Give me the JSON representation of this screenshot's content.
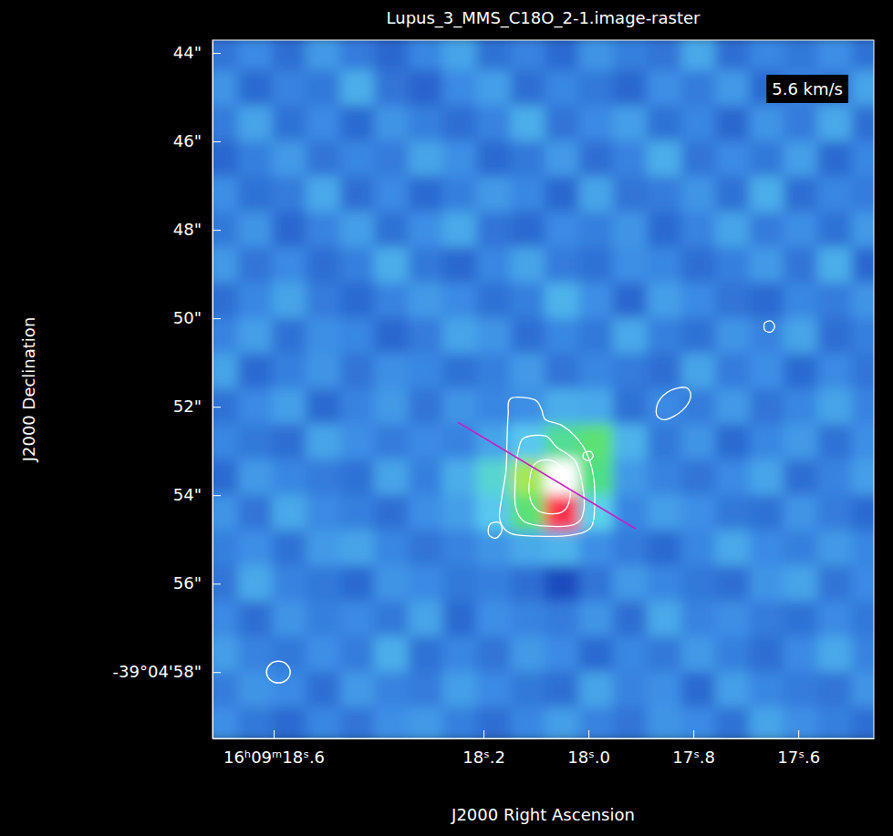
{
  "chart_data": {
    "type": "heatmap",
    "title": "Lupus_3_MMS_C18O_2-1.image-raster",
    "x_label": "J2000 Right Ascension",
    "y_label": "J2000 Declination",
    "annotation": "5.6 km/s",
    "xlim": [
      18.7165,
      17.456
    ],
    "ylim": [
      43.71,
      59.5
    ],
    "xticks": [
      {
        "value": 18.6,
        "label": "16ʰ09ᵐ18ˢ.6"
      },
      {
        "value": 18.2,
        "label": "18ˢ.2"
      },
      {
        "value": 18.0,
        "label": "18ˢ.0"
      },
      {
        "value": 17.8,
        "label": "17ˢ.8"
      },
      {
        "value": 17.6,
        "label": "17ˢ.6"
      }
    ],
    "yticks": [
      {
        "value": 44,
        "label": "44\""
      },
      {
        "value": 46,
        "label": "46\""
      },
      {
        "value": 48,
        "label": "48\""
      },
      {
        "value": 50,
        "label": "50\""
      },
      {
        "value": 52,
        "label": "52\""
      },
      {
        "value": 54,
        "label": "54\""
      },
      {
        "value": 56,
        "label": "56\""
      },
      {
        "value": 58,
        "label": "-39°04'58\""
      }
    ],
    "x": [
      18.7,
      18.635,
      18.57,
      18.505,
      18.44,
      18.375,
      18.31,
      18.245,
      18.18,
      18.115,
      18.05,
      17.985,
      17.92,
      17.855,
      17.79,
      17.725,
      17.66,
      17.595,
      17.53,
      17.465
    ],
    "y": [
      44.0,
      44.8,
      45.6,
      46.4,
      47.2,
      48.0,
      48.8,
      49.6,
      50.4,
      51.2,
      52.0,
      52.8,
      53.6,
      54.4,
      55.2,
      56.0,
      56.8,
      57.6,
      58.4,
      59.2
    ],
    "cells": [
      [
        0.22,
        0.28,
        0.2,
        0.31,
        0.24,
        0.18,
        0.27,
        0.33,
        0.21,
        0.26,
        0.19,
        0.3,
        0.25,
        0.22,
        0.34,
        0.2,
        0.27,
        0.23,
        0.29,
        0.21
      ],
      [
        0.3,
        0.19,
        0.26,
        0.23,
        0.35,
        0.22,
        0.17,
        0.28,
        0.32,
        0.2,
        0.27,
        0.23,
        0.18,
        0.29,
        0.24,
        0.31,
        0.19,
        0.26,
        0.22,
        0.33
      ],
      [
        0.24,
        0.33,
        0.21,
        0.28,
        0.19,
        0.3,
        0.25,
        0.2,
        0.26,
        0.35,
        0.22,
        0.28,
        0.32,
        0.21,
        0.27,
        0.18,
        0.3,
        0.24,
        0.34,
        0.2
      ],
      [
        0.18,
        0.25,
        0.31,
        0.22,
        0.27,
        0.24,
        0.33,
        0.29,
        0.19,
        0.23,
        0.31,
        0.2,
        0.26,
        0.35,
        0.22,
        0.28,
        0.23,
        0.32,
        0.19,
        0.27
      ],
      [
        0.29,
        0.21,
        0.24,
        0.34,
        0.2,
        0.28,
        0.19,
        0.25,
        0.31,
        0.27,
        0.18,
        0.33,
        0.22,
        0.24,
        0.3,
        0.21,
        0.35,
        0.2,
        0.27,
        0.24
      ],
      [
        0.23,
        0.3,
        0.18,
        0.26,
        0.32,
        0.21,
        0.29,
        0.34,
        0.22,
        0.19,
        0.28,
        0.25,
        0.3,
        0.19,
        0.26,
        0.33,
        0.24,
        0.29,
        0.21,
        0.31
      ],
      [
        0.31,
        0.22,
        0.28,
        0.2,
        0.25,
        0.35,
        0.23,
        0.18,
        0.27,
        0.33,
        0.24,
        0.21,
        0.29,
        0.27,
        0.2,
        0.25,
        0.31,
        0.22,
        0.35,
        0.18
      ],
      [
        0.2,
        0.27,
        0.33,
        0.24,
        0.19,
        0.26,
        0.31,
        0.28,
        0.21,
        0.25,
        0.36,
        0.29,
        0.18,
        0.32,
        0.28,
        0.22,
        0.19,
        0.27,
        0.24,
        0.3
      ],
      [
        0.26,
        0.32,
        0.21,
        0.29,
        0.27,
        0.18,
        0.24,
        0.33,
        0.3,
        0.2,
        0.27,
        0.23,
        0.34,
        0.25,
        0.21,
        0.3,
        0.26,
        0.33,
        0.2,
        0.25
      ],
      [
        0.33,
        0.19,
        0.25,
        0.3,
        0.22,
        0.29,
        0.27,
        0.21,
        0.25,
        0.31,
        0.22,
        0.27,
        0.24,
        0.2,
        0.33,
        0.24,
        0.29,
        0.19,
        0.28,
        0.22
      ],
      [
        0.21,
        0.28,
        0.32,
        0.19,
        0.26,
        0.31,
        0.22,
        0.3,
        0.27,
        0.29,
        0.35,
        0.34,
        0.21,
        0.28,
        0.24,
        0.31,
        0.22,
        0.27,
        0.33,
        0.26
      ],
      [
        0.27,
        0.23,
        0.2,
        0.33,
        0.29,
        0.24,
        0.28,
        0.26,
        0.33,
        0.4,
        0.52,
        0.56,
        0.36,
        0.23,
        0.3,
        0.19,
        0.27,
        0.31,
        0.21,
        0.29
      ],
      [
        0.19,
        0.31,
        0.27,
        0.24,
        0.21,
        0.33,
        0.25,
        0.35,
        0.45,
        0.62,
        1.0,
        0.54,
        0.31,
        0.26,
        0.22,
        0.28,
        0.33,
        0.2,
        0.26,
        0.32
      ],
      [
        0.3,
        0.22,
        0.34,
        0.28,
        0.25,
        0.2,
        0.29,
        0.32,
        0.4,
        0.56,
        0.84,
        0.42,
        0.27,
        0.32,
        0.29,
        0.23,
        0.21,
        0.3,
        0.24,
        0.19
      ],
      [
        0.25,
        0.29,
        0.21,
        0.31,
        0.33,
        0.27,
        0.22,
        0.26,
        0.3,
        0.34,
        0.36,
        0.29,
        0.24,
        0.19,
        0.27,
        0.34,
        0.28,
        0.25,
        0.31,
        0.27
      ],
      [
        0.22,
        0.34,
        0.26,
        0.23,
        0.19,
        0.3,
        0.28,
        0.23,
        0.25,
        0.2,
        0.1,
        0.22,
        0.31,
        0.27,
        0.23,
        0.2,
        0.3,
        0.33,
        0.22,
        0.28
      ],
      [
        0.28,
        0.2,
        0.3,
        0.25,
        0.28,
        0.23,
        0.33,
        0.19,
        0.29,
        0.26,
        0.24,
        0.3,
        0.2,
        0.34,
        0.26,
        0.29,
        0.24,
        0.21,
        0.28,
        0.23
      ],
      [
        0.32,
        0.26,
        0.23,
        0.29,
        0.24,
        0.35,
        0.21,
        0.27,
        0.22,
        0.31,
        0.28,
        0.19,
        0.27,
        0.23,
        0.31,
        0.25,
        0.2,
        0.28,
        0.34,
        0.26
      ],
      [
        0.24,
        0.3,
        0.28,
        0.2,
        0.31,
        0.26,
        0.24,
        0.32,
        0.28,
        0.23,
        0.2,
        0.33,
        0.26,
        0.29,
        0.19,
        0.32,
        0.27,
        0.24,
        0.22,
        0.3
      ],
      [
        0.29,
        0.23,
        0.19,
        0.27,
        0.22,
        0.29,
        0.31,
        0.25,
        0.2,
        0.27,
        0.32,
        0.26,
        0.22,
        0.3,
        0.28,
        0.21,
        0.33,
        0.29,
        0.25,
        0.2
      ]
    ],
    "contours": [
      [
        [
          18.148,
          51.814
        ],
        [
          18.104,
          51.835
        ],
        [
          18.09,
          52.041
        ],
        [
          18.082,
          52.289
        ],
        [
          18.052,
          52.412
        ],
        [
          18.026,
          52.66
        ],
        [
          18.005,
          53.01
        ],
        [
          17.991,
          53.526
        ],
        [
          17.988,
          54.144
        ],
        [
          17.995,
          54.722
        ],
        [
          18.035,
          54.907
        ],
        [
          18.096,
          54.928
        ],
        [
          18.148,
          54.866
        ],
        [
          18.169,
          54.557
        ],
        [
          18.165,
          54.041
        ],
        [
          18.157,
          53.423
        ],
        [
          18.155,
          52.701
        ],
        [
          18.153,
          52.186
        ]
      ],
      [
        [
          18.122,
          52.701
        ],
        [
          18.082,
          52.66
        ],
        [
          18.061,
          52.907
        ],
        [
          18.026,
          53.216
        ],
        [
          18.012,
          53.732
        ],
        [
          18.009,
          54.351
        ],
        [
          18.026,
          54.66
        ],
        [
          18.078,
          54.701
        ],
        [
          18.122,
          54.598
        ],
        [
          18.139,
          54.247
        ],
        [
          18.139,
          53.526
        ],
        [
          18.134,
          53.01
        ]
      ],
      [
        [
          18.104,
          53.32
        ],
        [
          18.07,
          53.216
        ],
        [
          18.043,
          53.526
        ],
        [
          18.035,
          54.041
        ],
        [
          18.052,
          54.392
        ],
        [
          18.096,
          54.351
        ],
        [
          18.113,
          53.938
        ]
      ],
      [
        [
          18.009,
          53.052
        ],
        [
          17.997,
          53.01
        ],
        [
          17.991,
          53.113
        ],
        [
          17.998,
          53.216
        ],
        [
          18.009,
          53.175
        ]
      ],
      [
        [
          17.866,
          51.876
        ],
        [
          17.843,
          51.629
        ],
        [
          17.814,
          51.567
        ],
        [
          17.805,
          51.773
        ],
        [
          17.821,
          52.082
        ],
        [
          17.852,
          52.289
        ],
        [
          17.87,
          52.186
        ]
      ],
      [
        [
          17.664,
          50.103
        ],
        [
          17.652,
          50.062
        ],
        [
          17.645,
          50.186
        ],
        [
          17.652,
          50.309
        ],
        [
          17.664,
          50.268
        ]
      ],
      [
        [
          18.188,
          54.66
        ],
        [
          18.17,
          54.619
        ],
        [
          18.165,
          54.804
        ],
        [
          18.176,
          54.969
        ],
        [
          18.19,
          54.887
        ]
      ]
    ],
    "beam": {
      "x": 18.591,
      "y": 58.0,
      "width": 0.045,
      "height": 0.49
    },
    "cut": [
      [
        18.249,
        52.35
      ],
      [
        17.91,
        54.76
      ]
    ]
  }
}
